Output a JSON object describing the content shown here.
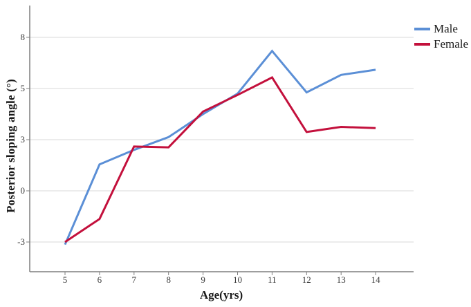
{
  "chart_data": {
    "type": "line",
    "title": "",
    "xlabel": "Age(yrs)",
    "ylabel": "Posterior sloping angle (°)",
    "x_axis": {
      "label": "Age(yrs)",
      "ticks": [
        5,
        6,
        7,
        8,
        9,
        10,
        11,
        12,
        13,
        14
      ]
    },
    "y_axis": {
      "label": "Posterior sloping angle (°)",
      "ticks": [
        8,
        5,
        3,
        0,
        -3
      ]
    },
    "categories": [
      5,
      6,
      7,
      8,
      9,
      10,
      11,
      12,
      13,
      14
    ],
    "series": [
      {
        "name": "Male",
        "color": "#5b8fd6",
        "values": [
          -3.15,
          1.55,
          2.4,
          3.1,
          4.0,
          4.8,
          7.2,
          4.85,
          5.8,
          6.1
        ]
      },
      {
        "name": "Female",
        "color": "#c3103c",
        "values": [
          -3.0,
          -1.65,
          2.6,
          2.55,
          4.1,
          4.75,
          5.65,
          3.3,
          3.5,
          3.45
        ]
      }
    ],
    "legend_position": "top-right",
    "grid": "horizontal-only",
    "line_width": 3
  },
  "colors": {
    "background": "#ffffff",
    "gridline": "#d9d9d9",
    "axis": "#7f7f7f",
    "tick_label": "#3a3a3a"
  }
}
